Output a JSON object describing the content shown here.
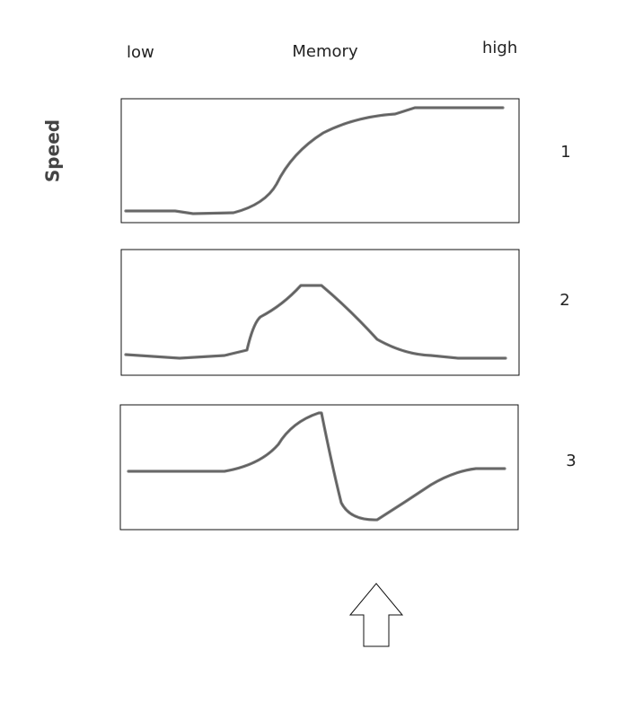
{
  "axis": {
    "left_label": "low",
    "title": "Memory",
    "right_label": "high",
    "y_label": "Speed"
  },
  "panels": [
    {
      "label": "1"
    },
    {
      "label": "2"
    },
    {
      "label": "3"
    }
  ]
}
